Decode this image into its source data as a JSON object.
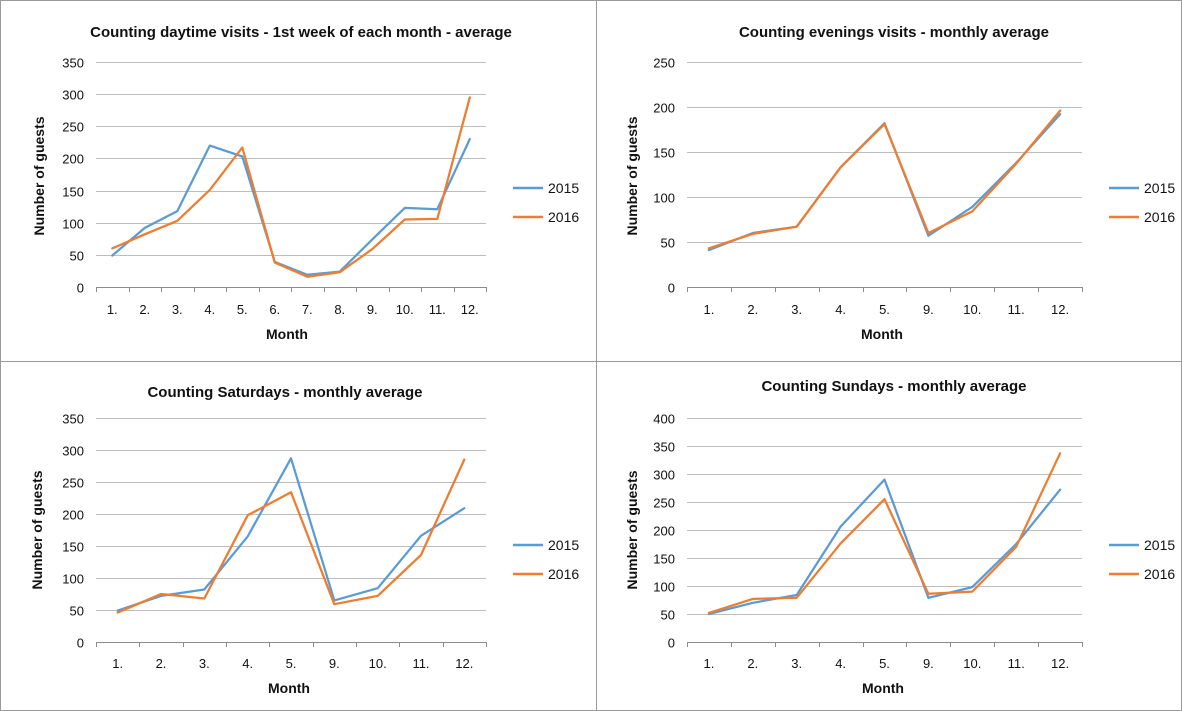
{
  "colors": {
    "s2015": "#5B9BD5",
    "s2016": "#ED7D31"
  },
  "chart_data": [
    {
      "type": "line",
      "title": "Counting daytime visits - 1st  week of each month - average",
      "xlabel": "Month",
      "ylabel": "Number of guests",
      "ylim": [
        0,
        350
      ],
      "yticks": [
        "0",
        "50",
        "100",
        "150",
        "200",
        "250",
        "300",
        "350"
      ],
      "categories": [
        "1.",
        "2.",
        "3.",
        "4.",
        "5.",
        "6.",
        "7.",
        "8.",
        "9.",
        "10.",
        "11.",
        "12."
      ],
      "grid": true,
      "legend": "right",
      "series": [
        {
          "name": "2015",
          "values": [
            49,
            92,
            118,
            220,
            203,
            39,
            19,
            24,
            74,
            123,
            121,
            230
          ]
        },
        {
          "name": "2016",
          "values": [
            60,
            82,
            103,
            151,
            217,
            38,
            16,
            23,
            59,
            105,
            106,
            295
          ]
        }
      ]
    },
    {
      "type": "line",
      "title": "Counting evenings visits - monthly average",
      "xlabel": "Month",
      "ylabel": "Number of guests",
      "ylim": [
        0,
        250
      ],
      "yticks": [
        "0",
        "50",
        "100",
        "150",
        "200",
        "250"
      ],
      "categories": [
        "1.",
        "2.",
        "3.",
        "4.",
        "5.",
        "9.",
        "10.",
        "11.",
        "12."
      ],
      "grid": true,
      "legend": "right",
      "series": [
        {
          "name": "2015",
          "values": [
            41,
            60,
            67,
            133,
            182,
            57,
            89,
            138,
            192
          ]
        },
        {
          "name": "2016",
          "values": [
            43,
            59,
            67,
            133,
            181,
            60,
            84,
            137,
            196
          ]
        }
      ]
    },
    {
      "type": "line",
      "title": "Counting Saturdays - monthly average",
      "xlabel": "",
      "ylabel": "Number of guests",
      "ylim": [
        0,
        350
      ],
      "yticks": [
        "0",
        "50",
        "100",
        "150",
        "200",
        "250",
        "300",
        "350"
      ],
      "categories": [
        "1.",
        "2.",
        "3.",
        "4.",
        "5.",
        "9.",
        "10.",
        "11.",
        "12."
      ],
      "grid": true,
      "legend": "right",
      "series": [
        {
          "name": "2015",
          "values": [
            49,
            72,
            82,
            165,
            287,
            65,
            84,
            166,
            209
          ]
        },
        {
          "name": "2016",
          "values": [
            46,
            75,
            68,
            198,
            234,
            59,
            72,
            136,
            285
          ]
        }
      ]
    },
    {
      "type": "line",
      "title": "Counting Sundays - monthly average",
      "xlabel": "Month",
      "ylabel": "Number of guests",
      "ylim": [
        0,
        400
      ],
      "yticks": [
        "0",
        "50",
        "100",
        "150",
        "200",
        "250",
        "300",
        "350",
        "400"
      ],
      "categories": [
        "1.",
        "2.",
        "3.",
        "4.",
        "5.",
        "9.",
        "10.",
        "11.",
        "12."
      ],
      "grid": true,
      "legend": "right",
      "series": [
        {
          "name": "2015",
          "values": [
            50,
            70,
            84,
            206,
            290,
            79,
            98,
            175,
            272
          ]
        },
        {
          "name": "2016",
          "values": [
            52,
            77,
            79,
            176,
            255,
            86,
            90,
            170,
            337
          ]
        }
      ]
    }
  ],
  "bottom_axis_title": "Month"
}
